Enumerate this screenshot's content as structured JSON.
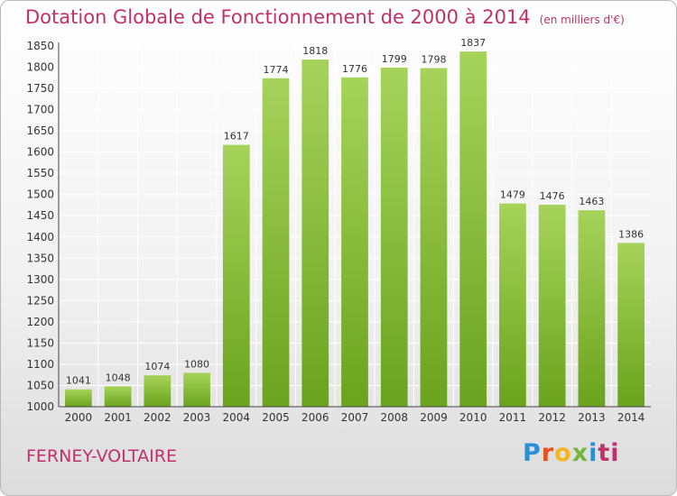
{
  "title": "Dotation Globale de Fonctionnement de 2000 à 2014",
  "subtitle": "(en milliers d'€)",
  "city": "FERNEY-VOLTAIRE",
  "logo": [
    "P",
    "r",
    "o",
    "x",
    "i",
    "ti"
  ],
  "chart_data": {
    "type": "bar",
    "title": "Dotation Globale de Fonctionnement de 2000 à 2014",
    "categories": [
      "2000",
      "2001",
      "2002",
      "2003",
      "2004",
      "2005",
      "2006",
      "2007",
      "2008",
      "2009",
      "2010",
      "2011",
      "2012",
      "2013",
      "2014"
    ],
    "values": [
      1041,
      1048,
      1074,
      1080,
      1617,
      1774,
      1818,
      1776,
      1799,
      1798,
      1837,
      1479,
      1476,
      1463,
      1386
    ],
    "ylim": [
      1000,
      1850
    ],
    "yticks": [
      1000,
      1050,
      1100,
      1150,
      1200,
      1250,
      1300,
      1350,
      1400,
      1450,
      1500,
      1550,
      1600,
      1650,
      1700,
      1750,
      1800,
      1850
    ],
    "grid": true,
    "colors": {
      "bar_top": "#a6d35a",
      "bar_bottom": "#6aa31d",
      "grid": "#ffffff"
    }
  }
}
